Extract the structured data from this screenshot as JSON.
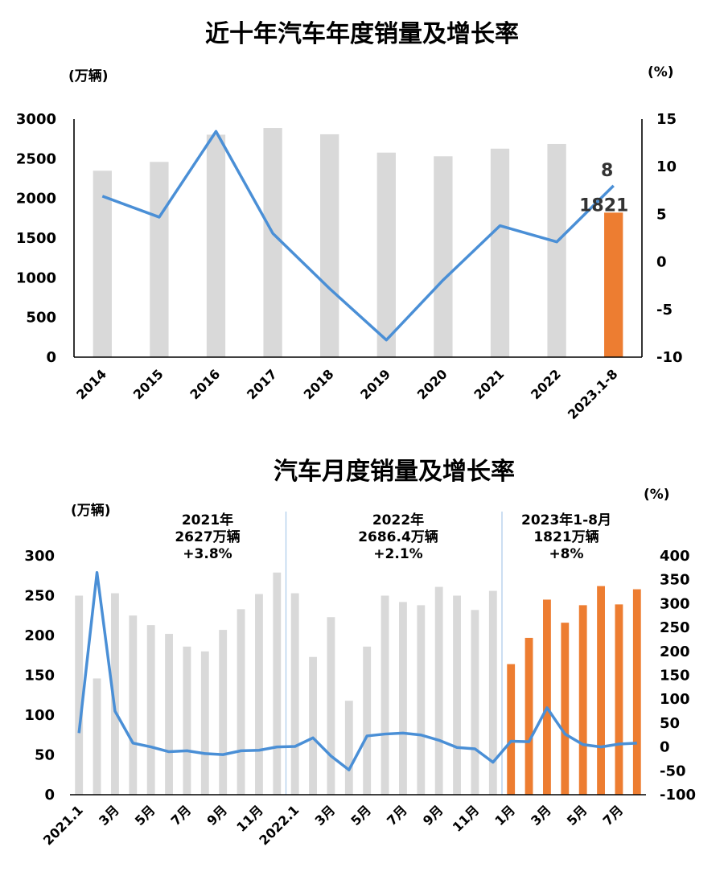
{
  "colors": {
    "bar_grey": "#d9d9d9",
    "bar_orange": "#ed7d31",
    "line_blue": "#4a8fd6"
  },
  "chart_data": [
    {
      "type": "bar",
      "title": "近十年汽车年度销量及增长率",
      "y_unit_left": "(万辆)",
      "y_unit_right": "(%)",
      "categories": [
        "2014",
        "2015",
        "2016",
        "2017",
        "2018",
        "2019",
        "2020",
        "2021",
        "2022",
        "2023.1-8"
      ],
      "ylim": [
        0,
        3000
      ],
      "y_ticks": [
        0,
        500,
        1000,
        1500,
        2000,
        2500,
        3000
      ],
      "y2lim": [
        -10,
        15
      ],
      "y2_ticks": [
        "-10",
        "-5",
        "0",
        "5",
        "10",
        "15"
      ],
      "legend": "none",
      "grid": false,
      "series": [
        {
          "type": "bar",
          "values": [
            2349,
            2460,
            2803,
            2888,
            2808,
            2577,
            2531,
            2627,
            2686,
            1821
          ],
          "highlight_last": true
        },
        {
          "type": "line",
          "axis": "right",
          "values": [
            6.9,
            4.7,
            13.7,
            3.0,
            -2.8,
            -8.2,
            -1.9,
            3.8,
            2.1,
            8
          ]
        }
      ],
      "data_labels": {
        "bar_last": "1821",
        "line_last": "8"
      }
    },
    {
      "type": "bar",
      "title": "汽车月度销量及增长率",
      "y_unit_left": "(万辆)",
      "y_unit_right": "(%)",
      "x_labels": [
        "2021.1",
        "",
        "3月",
        "",
        "5月",
        "",
        "7月",
        "",
        "9月",
        "",
        "11月",
        "",
        "2022.1",
        "",
        "3月",
        "",
        "5月",
        "",
        "7月",
        "",
        "9月",
        "",
        "11月",
        "",
        "1月",
        "",
        "3月",
        "",
        "5月",
        "",
        "7月",
        ""
      ],
      "ylim": [
        0,
        300
      ],
      "y_ticks": [
        0,
        50,
        100,
        150,
        200,
        250,
        300
      ],
      "y2lim": [
        -100,
        400
      ],
      "y2_ticks": [
        "-100",
        "-50",
        "0",
        "50",
        "100",
        "150",
        "200",
        "250",
        "300",
        "350",
        "400"
      ],
      "legend": "none",
      "grid": false,
      "series": [
        {
          "type": "bar",
          "values": [
            250,
            146,
            253,
            225,
            213,
            202,
            186,
            180,
            207,
            233,
            252,
            279,
            253,
            173,
            223,
            118,
            186,
            250,
            242,
            238,
            261,
            250,
            232,
            256,
            164,
            197,
            245,
            216,
            238,
            262,
            239,
            258
          ],
          "orange_from_index": 24
        },
        {
          "type": "line",
          "axis": "right",
          "values": [
            29,
            365,
            75,
            8,
            0,
            -10,
            -8,
            -14,
            -16,
            -8,
            -7,
            0,
            1,
            19,
            -19,
            -48,
            23,
            27,
            29,
            25,
            14,
            -1,
            -4,
            -32,
            12,
            11,
            82,
            27,
            5,
            0,
            6,
            8
          ]
        }
      ],
      "annotations": [
        {
          "lines": [
            "2021年",
            "2627万辆",
            "+3.8%"
          ]
        },
        {
          "lines": [
            "2022年",
            "2686.4万辆",
            "+2.1%"
          ]
        },
        {
          "lines": [
            "2023年1-8月",
            "1821万辆",
            "+8%"
          ]
        }
      ]
    }
  ]
}
